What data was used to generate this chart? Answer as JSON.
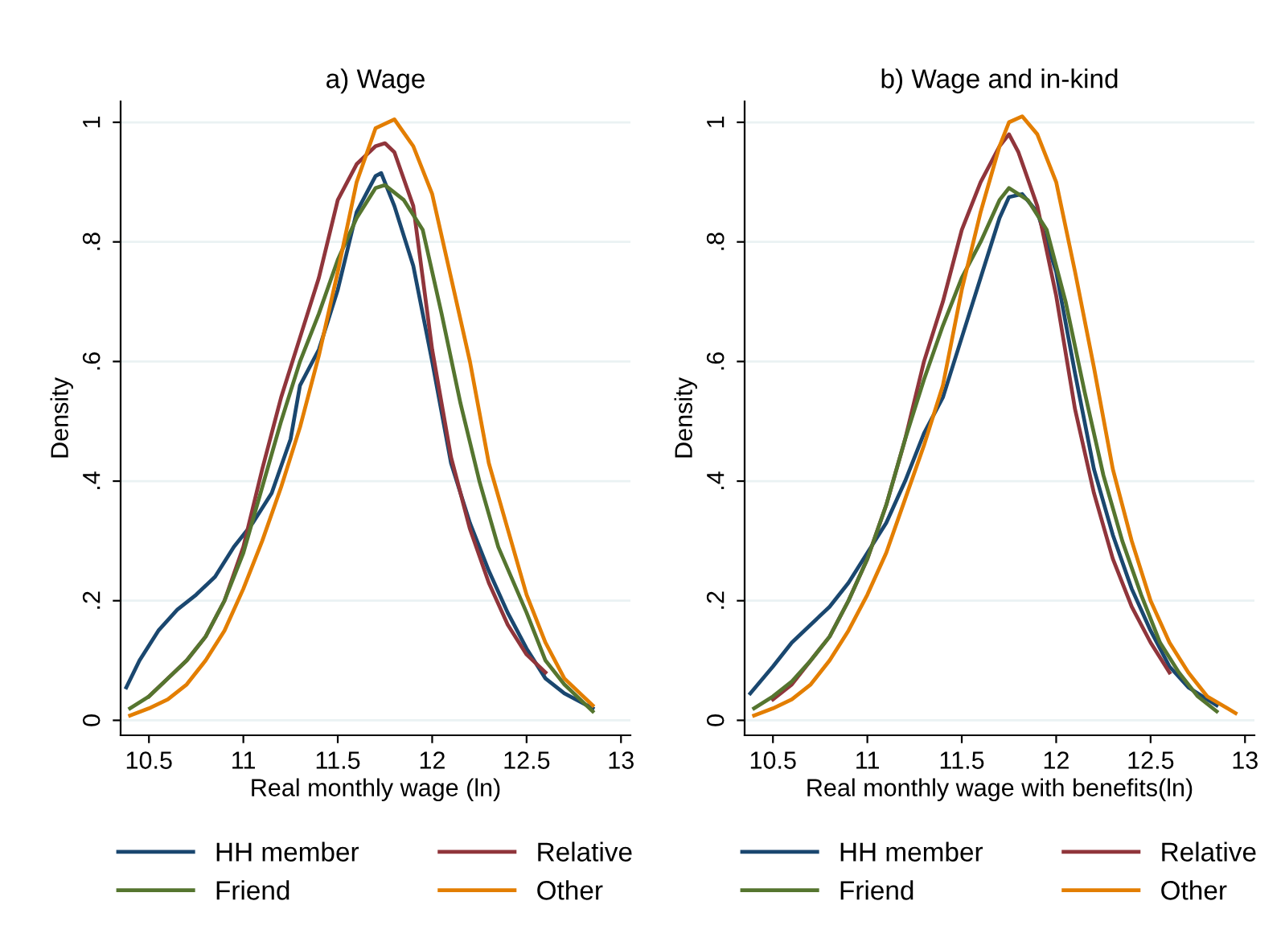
{
  "chart_data": [
    {
      "type": "line",
      "title": "a) Wage",
      "xlabel": "Real monthly wage (ln)",
      "ylabel": "Density",
      "xlim": [
        10.35,
        13.05
      ],
      "xticks": [
        10.5,
        11,
        11.5,
        12,
        12.5,
        13
      ],
      "ylim": [
        -0.025,
        1.035
      ],
      "yticks": [
        0,
        {
          "value": 0.2,
          "label": ".2"
        },
        {
          "value": 0.4,
          "label": ".4"
        },
        {
          "value": 0.6,
          "label": ".6"
        },
        {
          "value": 0.8,
          "label": ".8"
        },
        1
      ],
      "grid": "y",
      "legend": "bottom",
      "series": [
        {
          "name": "HH member",
          "color": "#1a476f",
          "x": [
            10.38,
            10.45,
            10.55,
            10.65,
            10.75,
            10.85,
            10.95,
            11.05,
            11.15,
            11.25,
            11.3,
            11.4,
            11.5,
            11.6,
            11.7,
            11.73,
            11.8,
            11.9,
            12.0,
            12.1,
            12.2,
            12.3,
            12.4,
            12.5,
            12.6,
            12.7,
            12.85
          ],
          "values": [
            0.055,
            0.1,
            0.15,
            0.185,
            0.21,
            0.24,
            0.29,
            0.33,
            0.38,
            0.47,
            0.56,
            0.62,
            0.72,
            0.85,
            0.91,
            0.915,
            0.86,
            0.76,
            0.6,
            0.43,
            0.33,
            0.25,
            0.18,
            0.12,
            0.07,
            0.045,
            0.02
          ]
        },
        {
          "name": "Relative",
          "color": "#90353b",
          "x": [
            10.5,
            10.6,
            10.7,
            10.8,
            10.9,
            11.0,
            11.1,
            11.2,
            11.3,
            11.4,
            11.5,
            11.6,
            11.7,
            11.75,
            11.8,
            11.9,
            12.0,
            12.1,
            12.2,
            12.3,
            12.4,
            12.5,
            12.6
          ],
          "values": [
            0.04,
            0.07,
            0.1,
            0.14,
            0.2,
            0.29,
            0.42,
            0.54,
            0.64,
            0.74,
            0.87,
            0.93,
            0.96,
            0.965,
            0.95,
            0.86,
            0.62,
            0.44,
            0.32,
            0.23,
            0.16,
            0.11,
            0.08
          ]
        },
        {
          "name": "Friend",
          "color": "#55752f",
          "x": [
            10.4,
            10.5,
            10.6,
            10.7,
            10.8,
            10.9,
            11.0,
            11.1,
            11.2,
            11.3,
            11.4,
            11.5,
            11.6,
            11.7,
            11.75,
            11.85,
            11.95,
            12.05,
            12.15,
            12.25,
            12.35,
            12.5,
            12.6,
            12.7,
            12.85
          ],
          "values": [
            0.02,
            0.04,
            0.07,
            0.1,
            0.14,
            0.2,
            0.28,
            0.39,
            0.5,
            0.6,
            0.68,
            0.77,
            0.84,
            0.89,
            0.895,
            0.87,
            0.82,
            0.68,
            0.53,
            0.4,
            0.29,
            0.18,
            0.1,
            0.06,
            0.015
          ]
        },
        {
          "name": "Other",
          "color": "#e37e00",
          "x": [
            10.4,
            10.5,
            10.6,
            10.7,
            10.8,
            10.9,
            11.0,
            11.1,
            11.2,
            11.3,
            11.4,
            11.5,
            11.6,
            11.7,
            11.8,
            11.9,
            12.0,
            12.1,
            12.2,
            12.3,
            12.4,
            12.5,
            12.6,
            12.7,
            12.85
          ],
          "values": [
            0.008,
            0.02,
            0.035,
            0.06,
            0.1,
            0.15,
            0.22,
            0.3,
            0.39,
            0.49,
            0.61,
            0.75,
            0.9,
            0.99,
            1.005,
            0.96,
            0.88,
            0.74,
            0.6,
            0.43,
            0.32,
            0.21,
            0.13,
            0.07,
            0.025
          ]
        }
      ]
    },
    {
      "type": "line",
      "title": "b) Wage and in-kind",
      "xlabel": "Real monthly wage with benefits(ln)",
      "ylabel": "Density",
      "xlim": [
        10.35,
        13.05
      ],
      "xticks": [
        10.5,
        11,
        11.5,
        12,
        12.5,
        13
      ],
      "ylim": [
        -0.025,
        1.035
      ],
      "yticks": [
        0,
        {
          "value": 0.2,
          "label": ".2"
        },
        {
          "value": 0.4,
          "label": ".4"
        },
        {
          "value": 0.6,
          "label": ".6"
        },
        {
          "value": 0.8,
          "label": ".8"
        },
        1
      ],
      "grid": "y",
      "legend": "bottom",
      "series": [
        {
          "name": "HH member",
          "color": "#1a476f",
          "x": [
            10.38,
            10.5,
            10.6,
            10.7,
            10.8,
            10.9,
            11.0,
            11.1,
            11.2,
            11.3,
            11.4,
            11.5,
            11.6,
            11.7,
            11.75,
            11.82,
            11.9,
            12.0,
            12.1,
            12.2,
            12.3,
            12.4,
            12.5,
            12.6,
            12.7,
            12.85
          ],
          "values": [
            0.045,
            0.09,
            0.13,
            0.16,
            0.19,
            0.23,
            0.28,
            0.33,
            0.4,
            0.48,
            0.54,
            0.64,
            0.74,
            0.84,
            0.875,
            0.88,
            0.85,
            0.75,
            0.58,
            0.42,
            0.31,
            0.22,
            0.15,
            0.09,
            0.055,
            0.025
          ]
        },
        {
          "name": "Relative",
          "color": "#90353b",
          "x": [
            10.5,
            10.6,
            10.7,
            10.8,
            10.9,
            11.0,
            11.1,
            11.2,
            11.3,
            11.4,
            11.5,
            11.6,
            11.7,
            11.75,
            11.8,
            11.9,
            12.0,
            12.1,
            12.2,
            12.3,
            12.4,
            12.5,
            12.6
          ],
          "values": [
            0.035,
            0.06,
            0.1,
            0.14,
            0.2,
            0.27,
            0.36,
            0.47,
            0.6,
            0.7,
            0.82,
            0.9,
            0.96,
            0.98,
            0.95,
            0.86,
            0.71,
            0.52,
            0.38,
            0.27,
            0.19,
            0.13,
            0.08
          ]
        },
        {
          "name": "Friend",
          "color": "#55752f",
          "x": [
            10.4,
            10.5,
            10.6,
            10.7,
            10.8,
            10.9,
            11.0,
            11.1,
            11.2,
            11.3,
            11.4,
            11.5,
            11.6,
            11.7,
            11.75,
            11.85,
            11.95,
            12.05,
            12.15,
            12.25,
            12.35,
            12.45,
            12.55,
            12.65,
            12.75,
            12.85
          ],
          "values": [
            0.02,
            0.04,
            0.065,
            0.1,
            0.14,
            0.2,
            0.27,
            0.36,
            0.47,
            0.57,
            0.66,
            0.74,
            0.8,
            0.87,
            0.89,
            0.87,
            0.82,
            0.7,
            0.55,
            0.41,
            0.3,
            0.21,
            0.13,
            0.08,
            0.04,
            0.015
          ]
        },
        {
          "name": "Other",
          "color": "#e37e00",
          "x": [
            10.4,
            10.5,
            10.6,
            10.7,
            10.8,
            10.9,
            11.0,
            11.1,
            11.2,
            11.3,
            11.4,
            11.5,
            11.6,
            11.7,
            11.75,
            11.82,
            11.9,
            12.0,
            12.1,
            12.2,
            12.3,
            12.4,
            12.5,
            12.6,
            12.7,
            12.8,
            12.95
          ],
          "values": [
            0.008,
            0.02,
            0.035,
            0.06,
            0.1,
            0.15,
            0.21,
            0.28,
            0.37,
            0.46,
            0.56,
            0.72,
            0.85,
            0.96,
            1.0,
            1.01,
            0.98,
            0.9,
            0.75,
            0.59,
            0.42,
            0.3,
            0.2,
            0.13,
            0.08,
            0.04,
            0.012
          ]
        }
      ]
    }
  ]
}
